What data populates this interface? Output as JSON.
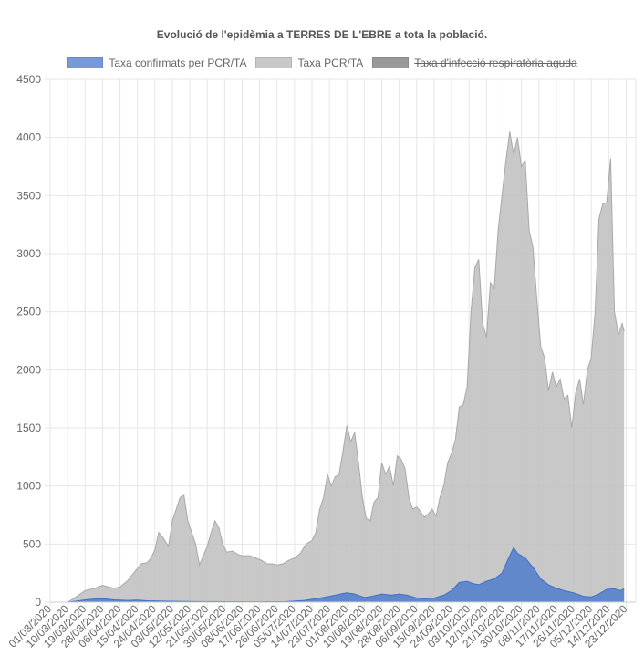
{
  "title": "Evolució de l'epidèmia a TERRES DE L'EBRE a tota la població.",
  "legend": [
    {
      "label": "Taxa confirmats per PCR/TA",
      "color": "#7799d8",
      "hidden": false
    },
    {
      "label": "Taxa PCR/TA",
      "color": "#c8c8c8",
      "hidden": false
    },
    {
      "label": "Taxa d'infecció respiratòria aguda",
      "color": "#999999",
      "hidden": true
    }
  ],
  "chart_data": {
    "type": "area",
    "title": "Evolució de l'epidèmia a TERRES DE L'EBRE a tota la població.",
    "xlabel": "",
    "ylabel": "",
    "ylim": [
      0,
      4500
    ],
    "yticks": [
      0,
      500,
      1000,
      1500,
      2000,
      2500,
      3000,
      3500,
      4000,
      4500
    ],
    "x_start": "01/03/2020",
    "x_end": "28/12/2020",
    "xtick_labels": [
      "01/03/2020",
      "10/03/2020",
      "19/03/2020",
      "28/03/2020",
      "06/04/2020",
      "15/04/2020",
      "24/04/2020",
      "03/05/2020",
      "12/05/2020",
      "21/05/2020",
      "30/05/2020",
      "08/06/2020",
      "17/06/2020",
      "26/06/2020",
      "05/07/2020",
      "14/07/2020",
      "23/07/2020",
      "01/08/2020",
      "10/08/2020",
      "19/08/2020",
      "28/08/2020",
      "06/09/2020",
      "15/09/2020",
      "24/09/2020",
      "03/10/2020",
      "12/10/2020",
      "21/10/2020",
      "30/10/2020",
      "08/11/2020",
      "17/11/2020",
      "26/11/2020",
      "05/12/2020",
      "14/12/2020",
      "23/12/2020"
    ],
    "grid": true,
    "legend_position": "top",
    "series": [
      {
        "name": "Taxa PCR/TA",
        "color": "#c8c8c8",
        "points": [
          [
            "01/03/2020",
            0
          ],
          [
            "10/03/2020",
            0
          ],
          [
            "13/03/2020",
            30
          ],
          [
            "19/03/2020",
            100
          ],
          [
            "24/03/2020",
            120
          ],
          [
            "28/03/2020",
            145
          ],
          [
            "31/03/2020",
            130
          ],
          [
            "03/04/2020",
            120
          ],
          [
            "06/04/2020",
            130
          ],
          [
            "10/04/2020",
            185
          ],
          [
            "13/04/2020",
            250
          ],
          [
            "15/04/2020",
            290
          ],
          [
            "17/04/2020",
            330
          ],
          [
            "20/04/2020",
            340
          ],
          [
            "22/04/2020",
            380
          ],
          [
            "24/04/2020",
            450
          ],
          [
            "26/04/2020",
            600
          ],
          [
            "28/04/2020",
            560
          ],
          [
            "01/05/2020",
            480
          ],
          [
            "03/05/2020",
            700
          ],
          [
            "05/05/2020",
            800
          ],
          [
            "07/05/2020",
            900
          ],
          [
            "09/05/2020",
            920
          ],
          [
            "11/05/2020",
            700
          ],
          [
            "13/05/2020",
            600
          ],
          [
            "15/05/2020",
            500
          ],
          [
            "17/05/2020",
            320
          ],
          [
            "19/05/2020",
            400
          ],
          [
            "21/05/2020",
            480
          ],
          [
            "23/05/2020",
            600
          ],
          [
            "25/05/2020",
            700
          ],
          [
            "27/05/2020",
            640
          ],
          [
            "29/05/2020",
            500
          ],
          [
            "31/05/2020",
            430
          ],
          [
            "03/06/2020",
            440
          ],
          [
            "06/06/2020",
            410
          ],
          [
            "08/06/2020",
            400
          ],
          [
            "12/06/2020",
            400
          ],
          [
            "15/06/2020",
            380
          ],
          [
            "18/06/2020",
            360
          ],
          [
            "21/06/2020",
            330
          ],
          [
            "24/06/2020",
            330
          ],
          [
            "26/06/2020",
            320
          ],
          [
            "29/06/2020",
            330
          ],
          [
            "02/07/2020",
            360
          ],
          [
            "05/07/2020",
            380
          ],
          [
            "08/07/2020",
            420
          ],
          [
            "11/07/2020",
            500
          ],
          [
            "14/07/2020",
            530
          ],
          [
            "16/07/2020",
            600
          ],
          [
            "18/07/2020",
            800
          ],
          [
            "20/07/2020",
            900
          ],
          [
            "22/07/2020",
            1100
          ],
          [
            "24/07/2020",
            1000
          ],
          [
            "26/07/2020",
            1080
          ],
          [
            "28/07/2020",
            1100
          ],
          [
            "30/07/2020",
            1300
          ],
          [
            "01/08/2020",
            1520
          ],
          [
            "03/08/2020",
            1380
          ],
          [
            "05/08/2020",
            1460
          ],
          [
            "07/08/2020",
            1200
          ],
          [
            "09/08/2020",
            900
          ],
          [
            "11/08/2020",
            720
          ],
          [
            "13/08/2020",
            700
          ],
          [
            "15/08/2020",
            860
          ],
          [
            "17/08/2020",
            900
          ],
          [
            "19/08/2020",
            1200
          ],
          [
            "21/08/2020",
            1100
          ],
          [
            "23/08/2020",
            1170
          ],
          [
            "25/08/2020",
            1000
          ],
          [
            "27/08/2020",
            1260
          ],
          [
            "29/08/2020",
            1230
          ],
          [
            "31/08/2020",
            1150
          ],
          [
            "02/09/2020",
            900
          ],
          [
            "04/09/2020",
            800
          ],
          [
            "06/09/2020",
            820
          ],
          [
            "08/09/2020",
            780
          ],
          [
            "10/09/2020",
            730
          ],
          [
            "12/09/2020",
            760
          ],
          [
            "14/09/2020",
            800
          ],
          [
            "16/09/2020",
            740
          ],
          [
            "18/09/2020",
            900
          ],
          [
            "20/09/2020",
            1000
          ],
          [
            "22/09/2020",
            1200
          ],
          [
            "24/09/2020",
            1280
          ],
          [
            "26/09/2020",
            1400
          ],
          [
            "28/09/2020",
            1680
          ],
          [
            "30/09/2020",
            1700
          ],
          [
            "02/10/2020",
            1850
          ],
          [
            "04/10/2020",
            2500
          ],
          [
            "06/10/2020",
            2880
          ],
          [
            "08/10/2020",
            2950
          ],
          [
            "10/10/2020",
            2400
          ],
          [
            "12/10/2020",
            2280
          ],
          [
            "14/10/2020",
            2750
          ],
          [
            "16/10/2020",
            2700
          ],
          [
            "18/10/2020",
            3200
          ],
          [
            "20/10/2020",
            3500
          ],
          [
            "22/10/2020",
            3800
          ],
          [
            "24/10/2020",
            4050
          ],
          [
            "26/10/2020",
            3850
          ],
          [
            "28/10/2020",
            4000
          ],
          [
            "30/10/2020",
            3750
          ],
          [
            "01/11/2020",
            3800
          ],
          [
            "03/11/2020",
            3200
          ],
          [
            "05/11/2020",
            3050
          ],
          [
            "07/11/2020",
            2600
          ],
          [
            "09/11/2020",
            2200
          ],
          [
            "11/11/2020",
            2100
          ],
          [
            "13/11/2020",
            1820
          ],
          [
            "15/11/2020",
            1980
          ],
          [
            "17/11/2020",
            1850
          ],
          [
            "19/11/2020",
            1920
          ],
          [
            "21/11/2020",
            1750
          ],
          [
            "23/11/2020",
            1780
          ],
          [
            "25/11/2020",
            1500
          ],
          [
            "27/11/2020",
            1800
          ],
          [
            "29/11/2020",
            1920
          ],
          [
            "01/12/2020",
            1700
          ],
          [
            "03/12/2020",
            2000
          ],
          [
            "05/12/2020",
            2100
          ],
          [
            "07/12/2020",
            2500
          ],
          [
            "09/12/2020",
            3300
          ],
          [
            "11/12/2020",
            3430
          ],
          [
            "13/12/2020",
            3440
          ],
          [
            "15/12/2020",
            3820
          ],
          [
            "17/12/2020",
            2500
          ],
          [
            "19/12/2020",
            2300
          ],
          [
            "21/12/2020",
            2400
          ],
          [
            "22/12/2020",
            2330
          ]
        ]
      },
      {
        "name": "Taxa confirmats per PCR/TA",
        "color": "#5b86d0",
        "points": [
          [
            "01/03/2020",
            0
          ],
          [
            "10/03/2020",
            0
          ],
          [
            "15/03/2020",
            10
          ],
          [
            "19/03/2020",
            20
          ],
          [
            "23/03/2020",
            25
          ],
          [
            "28/03/2020",
            30
          ],
          [
            "03/04/2020",
            20
          ],
          [
            "10/04/2020",
            15
          ],
          [
            "15/04/2020",
            18
          ],
          [
            "20/04/2020",
            12
          ],
          [
            "01/05/2020",
            8
          ],
          [
            "15/05/2020",
            5
          ],
          [
            "01/06/2020",
            4
          ],
          [
            "15/06/2020",
            3
          ],
          [
            "01/07/2020",
            5
          ],
          [
            "10/07/2020",
            15
          ],
          [
            "16/07/2020",
            30
          ],
          [
            "20/07/2020",
            40
          ],
          [
            "26/07/2020",
            60
          ],
          [
            "30/07/2020",
            75
          ],
          [
            "01/08/2020",
            80
          ],
          [
            "05/08/2020",
            70
          ],
          [
            "10/08/2020",
            40
          ],
          [
            "14/08/2020",
            50
          ],
          [
            "19/08/2020",
            70
          ],
          [
            "24/08/2020",
            60
          ],
          [
            "28/08/2020",
            70
          ],
          [
            "01/09/2020",
            60
          ],
          [
            "06/09/2020",
            35
          ],
          [
            "10/09/2020",
            30
          ],
          [
            "15/09/2020",
            35
          ],
          [
            "20/09/2020",
            60
          ],
          [
            "24/09/2020",
            100
          ],
          [
            "28/09/2020",
            170
          ],
          [
            "02/10/2020",
            180
          ],
          [
            "05/10/2020",
            160
          ],
          [
            "08/10/2020",
            150
          ],
          [
            "12/10/2020",
            180
          ],
          [
            "16/10/2020",
            200
          ],
          [
            "20/10/2020",
            250
          ],
          [
            "24/10/2020",
            400
          ],
          [
            "26/10/2020",
            470
          ],
          [
            "28/10/2020",
            420
          ],
          [
            "01/11/2020",
            380
          ],
          [
            "05/11/2020",
            300
          ],
          [
            "09/11/2020",
            200
          ],
          [
            "13/11/2020",
            150
          ],
          [
            "17/11/2020",
            120
          ],
          [
            "21/11/2020",
            100
          ],
          [
            "26/11/2020",
            80
          ],
          [
            "01/12/2020",
            50
          ],
          [
            "05/12/2020",
            45
          ],
          [
            "09/12/2020",
            70
          ],
          [
            "13/12/2020",
            110
          ],
          [
            "17/12/2020",
            115
          ],
          [
            "20/12/2020",
            100
          ],
          [
            "22/12/2020",
            115
          ]
        ]
      }
    ]
  }
}
